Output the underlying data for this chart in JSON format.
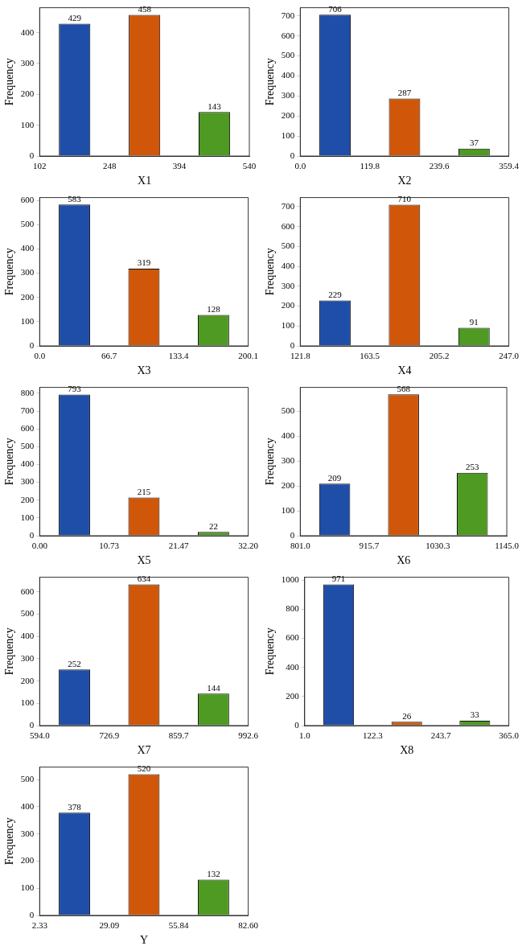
{
  "chart_data": [
    {
      "type": "histogram",
      "xlabel": "X1",
      "ylabel": "Frequency",
      "bins": [
        102,
        248,
        394,
        540
      ],
      "values": [
        429,
        458,
        143
      ],
      "colors": [
        "#1f4ea8",
        "#d0570a",
        "#4e9a22"
      ],
      "xlim": [
        102,
        540
      ],
      "xticks": [
        102,
        248,
        394,
        540
      ],
      "ylim": [
        0,
        481
      ],
      "yticks": [
        0,
        100,
        200,
        300,
        400
      ],
      "data_labels": true,
      "grid": false,
      "legend": false
    },
    {
      "type": "histogram",
      "xlabel": "X2",
      "ylabel": "Frequency",
      "bins": [
        0,
        119.8,
        239.6,
        359.4
      ],
      "values": [
        706,
        287,
        37
      ],
      "colors": [
        "#1f4ea8",
        "#d0570a",
        "#4e9a22"
      ],
      "xlim": [
        0,
        359.4
      ],
      "xticks": [
        {
          "value": 0,
          "label": "0.0"
        },
        119.8,
        239.6,
        359.4
      ],
      "ylim": [
        0,
        741
      ],
      "yticks": [
        0,
        100,
        200,
        300,
        400,
        500,
        600,
        700
      ],
      "data_labels": true,
      "grid": false,
      "legend": false
    },
    {
      "type": "histogram",
      "xlabel": "X3",
      "ylabel": "Frequency",
      "bins": [
        0,
        66.7,
        133.4,
        200.1
      ],
      "values": [
        583,
        319,
        128
      ],
      "colors": [
        "#1f4ea8",
        "#d0570a",
        "#4e9a22"
      ],
      "xlim": [
        0,
        200.1
      ],
      "xticks": [
        {
          "value": 0,
          "label": "0.0"
        },
        66.7,
        133.4,
        200.1
      ],
      "ylim": [
        0,
        612
      ],
      "yticks": [
        0,
        100,
        200,
        300,
        400,
        500,
        600
      ],
      "data_labels": true,
      "grid": false,
      "legend": false
    },
    {
      "type": "histogram",
      "xlabel": "X4",
      "ylabel": "Frequency",
      "bins": [
        121.8,
        163.5,
        205.2,
        247
      ],
      "values": [
        229,
        710,
        91
      ],
      "colors": [
        "#1f4ea8",
        "#d0570a",
        "#4e9a22"
      ],
      "xlim": [
        121.8,
        247
      ],
      "xticks": [
        121.8,
        163.5,
        205.2,
        {
          "value": 247,
          "label": "247.0"
        }
      ],
      "ylim": [
        0,
        746
      ],
      "yticks": [
        0,
        100,
        200,
        300,
        400,
        500,
        600,
        700
      ],
      "data_labels": true,
      "grid": false,
      "legend": false
    },
    {
      "type": "histogram",
      "xlabel": "X5",
      "ylabel": "Frequency",
      "bins": [
        0,
        10.73,
        21.47,
        32.2
      ],
      "values": [
        793,
        215,
        22
      ],
      "colors": [
        "#1f4ea8",
        "#d0570a",
        "#4e9a22"
      ],
      "xlim": [
        0,
        32.2
      ],
      "xticks": [
        {
          "value": 0,
          "label": "0.00"
        },
        10.73,
        21.47,
        {
          "value": 32.2,
          "label": "32.20"
        }
      ],
      "ylim": [
        0,
        833
      ],
      "yticks": [
        0,
        100,
        200,
        300,
        400,
        500,
        600,
        700,
        800
      ],
      "data_labels": true,
      "grid": false,
      "legend": false
    },
    {
      "type": "histogram",
      "xlabel": "X6",
      "ylabel": "Frequency",
      "bins": [
        801,
        915.7,
        1030.3,
        1145
      ],
      "values": [
        209,
        568,
        253
      ],
      "colors": [
        "#1f4ea8",
        "#d0570a",
        "#4e9a22"
      ],
      "xlim": [
        801,
        1145
      ],
      "xticks": [
        {
          "value": 801,
          "label": "801.0"
        },
        915.7,
        1030.3,
        {
          "value": 1145,
          "label": "1145.0"
        }
      ],
      "ylim": [
        0,
        596
      ],
      "yticks": [
        0,
        100,
        200,
        300,
        400,
        500
      ],
      "data_labels": true,
      "grid": false,
      "legend": false
    },
    {
      "type": "histogram",
      "xlabel": "X7",
      "ylabel": "Frequency",
      "bins": [
        594,
        726.9,
        859.7,
        992.6
      ],
      "values": [
        252,
        634,
        144
      ],
      "colors": [
        "#1f4ea8",
        "#d0570a",
        "#4e9a22"
      ],
      "xlim": [
        594,
        992.6
      ],
      "xticks": [
        {
          "value": 594,
          "label": "594.0"
        },
        726.9,
        859.7,
        992.6
      ],
      "ylim": [
        0,
        666
      ],
      "yticks": [
        0,
        100,
        200,
        300,
        400,
        500,
        600
      ],
      "data_labels": true,
      "grid": false,
      "legend": false
    },
    {
      "type": "histogram",
      "xlabel": "X8",
      "ylabel": "Frequency",
      "bins": [
        1,
        122.3,
        243.7,
        365
      ],
      "values": [
        971,
        26,
        33
      ],
      "colors": [
        "#1f4ea8",
        "#d0570a",
        "#4e9a22"
      ],
      "xlim": [
        1,
        365
      ],
      "xticks": [
        {
          "value": 1,
          "label": "1.0"
        },
        122.3,
        243.7,
        {
          "value": 365,
          "label": "365.0"
        }
      ],
      "ylim": [
        0,
        1020
      ],
      "yticks": [
        0,
        200,
        400,
        600,
        800,
        1000
      ],
      "data_labels": true,
      "grid": false,
      "legend": false
    },
    {
      "type": "histogram",
      "xlabel": "Y",
      "ylabel": "Frequency",
      "bins": [
        2.33,
        29.09,
        55.84,
        82.6
      ],
      "values": [
        378,
        520,
        132
      ],
      "colors": [
        "#1f4ea8",
        "#d0570a",
        "#4e9a22"
      ],
      "xlim": [
        2.33,
        82.6
      ],
      "xticks": [
        2.33,
        29.09,
        55.84,
        {
          "value": 82.6,
          "label": "82.60"
        }
      ],
      "ylim": [
        0,
        546
      ],
      "yticks": [
        0,
        100,
        200,
        300,
        400,
        500
      ],
      "data_labels": true,
      "grid": false,
      "legend": false
    }
  ]
}
